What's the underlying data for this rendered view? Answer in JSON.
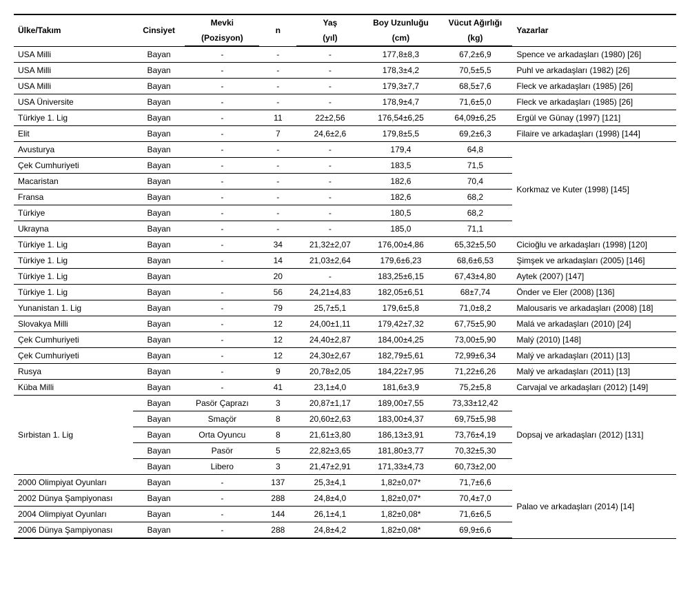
{
  "headers": {
    "row1": {
      "ulke": "Ülke/Takım",
      "cinsiyet": "Cinsiyet",
      "mevki": "Mevki",
      "n": "n",
      "yas": "Yaş",
      "boy": "Boy Uzunluğu",
      "vucut": "Vücut Ağırlığı",
      "yazar": "Yazarlar"
    },
    "row2": {
      "mevki": "(Pozisyon)",
      "yas": "(yıl)",
      "boy": "(cm)",
      "vucut": "(kg)"
    }
  },
  "rows": [
    {
      "ulke": "USA Milli",
      "cinsiyet": "Bayan",
      "mevki": "-",
      "n": "-",
      "yas": "-",
      "boy": "177,8±8,3",
      "vucut": "67,2±6,9",
      "yazar": "Spence ve arkadaşları (1980) [26]"
    },
    {
      "ulke": "USA Milli",
      "cinsiyet": "Bayan",
      "mevki": "-",
      "n": "-",
      "yas": "-",
      "boy": "178,3±4,2",
      "vucut": "70,5±5,5",
      "yazar": "Puhl ve arkadaşları (1982) [26]"
    },
    {
      "ulke": "USA Milli",
      "cinsiyet": "Bayan",
      "mevki": "-",
      "n": "-",
      "yas": "-",
      "boy": "179,3±7,7",
      "vucut": "68,5±7,6",
      "yazar": "Fleck ve arkadaşları (1985) [26]"
    },
    {
      "ulke": "USA Üniversite",
      "cinsiyet": "Bayan",
      "mevki": "-",
      "n": "-",
      "yas": "-",
      "boy": "178,9±4,7",
      "vucut": "71,6±5,0",
      "yazar": "Fleck ve arkadaşları (1985) [26]"
    },
    {
      "ulke": "Türkiye 1. Lig",
      "cinsiyet": "Bayan",
      "mevki": "-",
      "n": "11",
      "yas": "22±2,56",
      "boy": "176,54±6,25",
      "vucut": "64,09±6,25",
      "yazar": "Ergül ve Günay (1997) [121]"
    },
    {
      "ulke": "Elit",
      "cinsiyet": "Bayan",
      "mevki": "-",
      "n": "7",
      "yas": "24,6±2,6",
      "boy": "179,8±5,5",
      "vucut": "69,2±6,3",
      "yazar": "Filaire ve arkadaşları (1998) [144]"
    },
    {
      "ulke": "Avusturya",
      "cinsiyet": "Bayan",
      "mevki": "-",
      "n": "-",
      "yas": "-",
      "boy": "179,4",
      "vucut": "64,8",
      "yazar": "",
      "authorSpan": 6,
      "authorText": "Korkmaz ve Kuter (1998) [145]"
    },
    {
      "ulke": "Çek Cumhuriyeti",
      "cinsiyet": "Bayan",
      "mevki": "-",
      "n": "-",
      "yas": "-",
      "boy": "183,5",
      "vucut": "71,5",
      "yazar": ""
    },
    {
      "ulke": "Macaristan",
      "cinsiyet": "Bayan",
      "mevki": "-",
      "n": "-",
      "yas": "-",
      "boy": "182,6",
      "vucut": "70,4",
      "yazar": ""
    },
    {
      "ulke": "Fransa",
      "cinsiyet": "Bayan",
      "mevki": "-",
      "n": "-",
      "yas": "-",
      "boy": "182,6",
      "vucut": "68,2",
      "yazar": ""
    },
    {
      "ulke": "Türkiye",
      "cinsiyet": "Bayan",
      "mevki": "-",
      "n": "-",
      "yas": "-",
      "boy": "180,5",
      "vucut": "68,2",
      "yazar": ""
    },
    {
      "ulke": "Ukrayna",
      "cinsiyet": "Bayan",
      "mevki": "-",
      "n": "-",
      "yas": "-",
      "boy": "185,0",
      "vucut": "71,1",
      "yazar": ""
    },
    {
      "ulke": "Türkiye 1. Lig",
      "cinsiyet": "Bayan",
      "mevki": "-",
      "n": "34",
      "yas": "21,32±2,07",
      "boy": "176,00±4,86",
      "vucut": "65,32±5,50",
      "yazar": "Cicioğlu ve arkadaşları (1998) [120]"
    },
    {
      "ulke": "Türkiye 1. Lig",
      "cinsiyet": "Bayan",
      "mevki": "-",
      "n": "14",
      "yas": "21,03±2,64",
      "boy": "179,6±6,23",
      "vucut": "68,6±6,53",
      "yazar": "Şimşek ve arkadaşları (2005) [146]"
    },
    {
      "ulke": "Türkiye 1. Lig",
      "cinsiyet": "Bayan",
      "mevki": "",
      "n": "20",
      "yas": "-",
      "boy": "183,25±6,15",
      "vucut": "67,43±4,80",
      "yazar": "Aytek (2007) [147]"
    },
    {
      "ulke": "Türkiye 1. Lig",
      "cinsiyet": "Bayan",
      "mevki": "-",
      "n": "56",
      "yas": "24,21±4,83",
      "boy": "182,05±6,51",
      "vucut": "68±7,74",
      "yazar": "Önder ve Eler (2008) [136]"
    },
    {
      "ulke": "Yunanistan 1. Lig",
      "cinsiyet": "Bayan",
      "mevki": "-",
      "n": "79",
      "yas": "25,7±5,1",
      "boy": "179,6±5,8",
      "vucut": "71,0±8,2",
      "yazar": "Malousaris ve arkadaşları (2008) [18]"
    },
    {
      "ulke": "Slovakya Milli",
      "cinsiyet": "Bayan",
      "mevki": "-",
      "n": "12",
      "yas": "24,00±1,11",
      "boy": "179,42±7,32",
      "vucut": "67,75±5,90",
      "yazar": "Malá ve arkadaşları (2010) [24]"
    },
    {
      "ulke": "Çek Cumhuriyeti",
      "cinsiyet": "Bayan",
      "mevki": "-",
      "n": "12",
      "yas": "24,40±2,87",
      "boy": "184,00±4,25",
      "vucut": "73,00±5,90",
      "yazar": "Malý (2010) [148]"
    },
    {
      "ulke": "Çek Cumhuriyeti",
      "cinsiyet": "Bayan",
      "mevki": "-",
      "n": "12",
      "yas": "24,30±2,67",
      "boy": "182,79±5,61",
      "vucut": "72,99±6,34",
      "yazar": "Malý ve arkadaşları (2011) [13]"
    },
    {
      "ulke": "Rusya",
      "cinsiyet": "Bayan",
      "mevki": "-",
      "n": "9",
      "yas": "20,78±2,05",
      "boy": "184,22±7,95",
      "vucut": "71,22±6,26",
      "yazar": "Malý ve arkadaşları (2011) [13]"
    },
    {
      "ulke": "Küba Milli",
      "cinsiyet": "Bayan",
      "mevki": "-",
      "n": "41",
      "yas": "23,1±4,0",
      "boy": "181,6±3,9",
      "vucut": "75,2±5,8",
      "yazar": "Carvajal ve arkadaşları (2012) [149]"
    },
    {
      "ulke": "",
      "cinsiyet": "Bayan",
      "mevki": "Pasör Çaprazı",
      "n": "3",
      "yas": "20,87±1,17",
      "boy": "189,00±7,55",
      "vucut": "73,33±12,42",
      "yazar": "",
      "teamSpan": 5,
      "teamText": "Sırbistan 1. Lig",
      "authorSpan": 5,
      "authorText": "Dopsaj ve arkadaşları (2012) [131]"
    },
    {
      "ulke": "",
      "cinsiyet": "Bayan",
      "mevki": "Smaçör",
      "n": "8",
      "yas": "20,60±2,63",
      "boy": "183,00±4,37",
      "vucut": "69,75±5,98",
      "yazar": ""
    },
    {
      "ulke": "",
      "cinsiyet": "Bayan",
      "mevki": "Orta Oyuncu",
      "n": "8",
      "yas": "21,61±3,80",
      "boy": "186,13±3,91",
      "vucut": "73,76±4,19",
      "yazar": ""
    },
    {
      "ulke": "",
      "cinsiyet": "Bayan",
      "mevki": "Pasör",
      "n": "5",
      "yas": "22,82±3,65",
      "boy": "181,80±3,77",
      "vucut": "70,32±5,30",
      "yazar": ""
    },
    {
      "ulke": "",
      "cinsiyet": "Bayan",
      "mevki": "Libero",
      "n": "3",
      "yas": "21,47±2,91",
      "boy": "171,33±4,73",
      "vucut": "60,73±2,00",
      "yazar": ""
    },
    {
      "ulke": "2000 Olimpiyat Oyunları",
      "cinsiyet": "Bayan",
      "mevki": "-",
      "n": "137",
      "yas": "25,3±4,1",
      "boy": "1,82±0,07*",
      "vucut": "71,7±6,6",
      "yazar": "",
      "authorSpan": 4,
      "authorText": "Palao ve arkadaşları (2014) [14]"
    },
    {
      "ulke": "2002 Dünya Şampiyonası",
      "cinsiyet": "Bayan",
      "mevki": "-",
      "n": "288",
      "yas": "24,8±4,0",
      "boy": "1,82±0,07*",
      "vucut": "70,4±7,0",
      "yazar": ""
    },
    {
      "ulke": "2004 Olimpiyat Oyunları",
      "cinsiyet": "Bayan",
      "mevki": "-",
      "n": "144",
      "yas": "26,1±4,1",
      "boy": "1,82±0,08*",
      "vucut": "71,6±6,5",
      "yazar": ""
    },
    {
      "ulke": "2006 Dünya Şampiyonası",
      "cinsiyet": "Bayan",
      "mevki": "-",
      "n": "288",
      "yas": "24,8±4,2",
      "boy": "1,82±0,08*",
      "vucut": "69,9±6,6",
      "yazar": ""
    }
  ]
}
